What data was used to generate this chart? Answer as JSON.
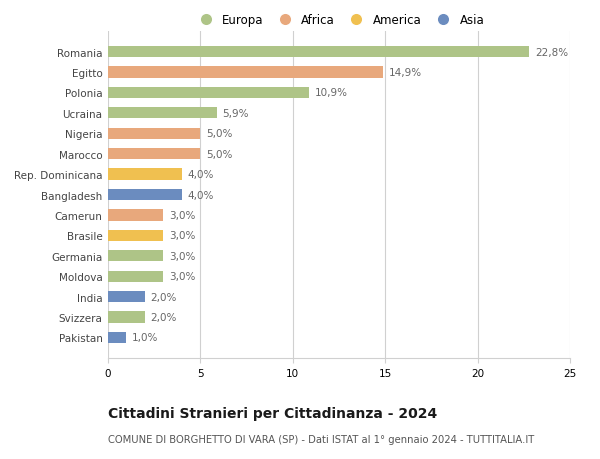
{
  "countries": [
    "Romania",
    "Egitto",
    "Polonia",
    "Ucraina",
    "Nigeria",
    "Marocco",
    "Rep. Dominicana",
    "Bangladesh",
    "Camerun",
    "Brasile",
    "Germania",
    "Moldova",
    "India",
    "Svizzera",
    "Pakistan"
  ],
  "values": [
    22.8,
    14.9,
    10.9,
    5.9,
    5.0,
    5.0,
    4.0,
    4.0,
    3.0,
    3.0,
    3.0,
    3.0,
    2.0,
    2.0,
    1.0
  ],
  "labels": [
    "22,8%",
    "14,9%",
    "10,9%",
    "5,9%",
    "5,0%",
    "5,0%",
    "4,0%",
    "4,0%",
    "3,0%",
    "3,0%",
    "3,0%",
    "3,0%",
    "2,0%",
    "2,0%",
    "1,0%"
  ],
  "continents": [
    "Europa",
    "Africa",
    "Europa",
    "Europa",
    "Africa",
    "Africa",
    "America",
    "Asia",
    "Africa",
    "America",
    "Europa",
    "Europa",
    "Asia",
    "Europa",
    "Asia"
  ],
  "colors": {
    "Europa": "#aec487",
    "Africa": "#e8a87c",
    "America": "#f0c050",
    "Asia": "#6b8cbf"
  },
  "xlim": [
    0,
    25
  ],
  "xticks": [
    0,
    5,
    10,
    15,
    20,
    25
  ],
  "title": "Cittadini Stranieri per Cittadinanza - 2024",
  "subtitle": "COMUNE DI BORGHETTO DI VARA (SP) - Dati ISTAT al 1° gennaio 2024 - TUTTITALIA.IT",
  "background_color": "#ffffff",
  "grid_color": "#d0d0d0",
  "bar_height": 0.55,
  "label_fontsize": 7.5,
  "tick_fontsize": 7.5,
  "title_fontsize": 10,
  "subtitle_fontsize": 7.2,
  "legend_order": [
    "Europa",
    "Africa",
    "America",
    "Asia"
  ]
}
